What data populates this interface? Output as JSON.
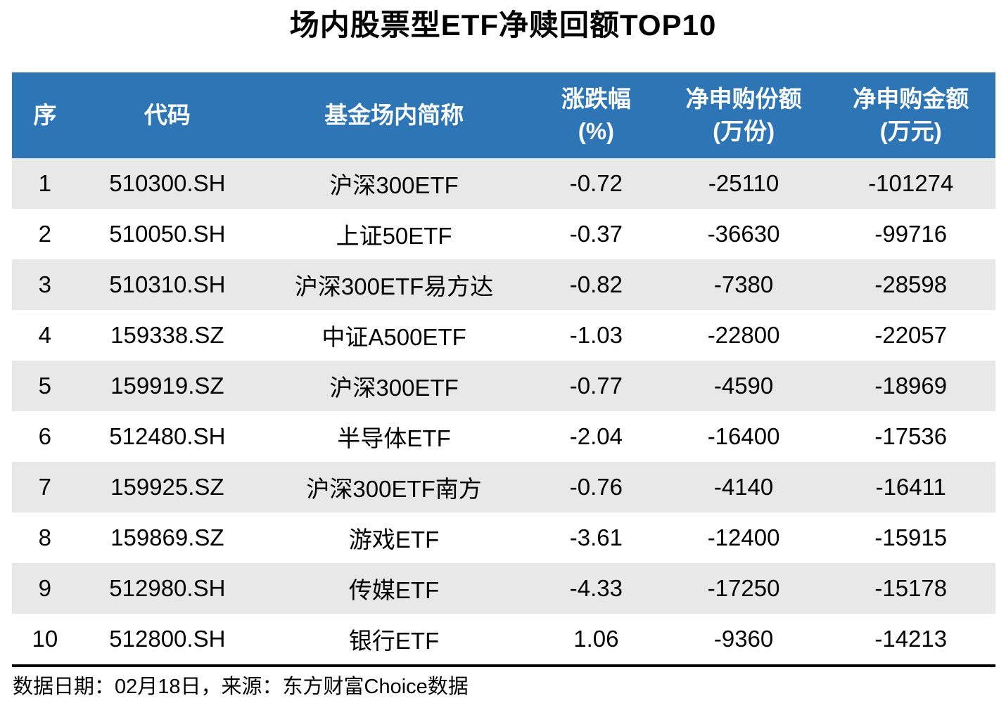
{
  "title": "场内股票型ETF净赎回额TOP10",
  "footer": {
    "text": "数据日期：02月18日，来源：东方财富Choice数据"
  },
  "colors": {
    "header_bg": "#2E75B6",
    "header_text": "#FFFFFF",
    "stripe_bg": "#E8E8E8",
    "body_text": "#000000",
    "divider": "#000000"
  },
  "chart_data": {
    "type": "table",
    "title": "场内股票型ETF净赎回额TOP10",
    "columns": [
      [
        "序",
        ""
      ],
      [
        "代码",
        ""
      ],
      [
        "基金场内简称",
        ""
      ],
      [
        "涨跌幅",
        "(%)"
      ],
      [
        "净申购份额",
        "(万份)"
      ],
      [
        "净申购金额",
        "(万元)"
      ]
    ],
    "rows": [
      [
        1,
        "510300.SH",
        "沪深300ETF",
        -0.72,
        -25110,
        -101274
      ],
      [
        2,
        "510050.SH",
        "上证50ETF",
        -0.37,
        -36630,
        -99716
      ],
      [
        3,
        "510310.SH",
        "沪深300ETF易方达",
        -0.82,
        -7380,
        -28598
      ],
      [
        4,
        "159338.SZ",
        "中证A500ETF",
        -1.03,
        -22800,
        -22057
      ],
      [
        5,
        "159919.SZ",
        "沪深300ETF",
        -0.77,
        -4590,
        -18969
      ],
      [
        6,
        "512480.SH",
        "半导体ETF",
        -2.04,
        -16400,
        -17536
      ],
      [
        7,
        "159925.SZ",
        "沪深300ETF南方",
        -0.76,
        -4140,
        -16411
      ],
      [
        8,
        "159869.SZ",
        "游戏ETF",
        -3.61,
        -12400,
        -15915
      ],
      [
        9,
        "512980.SH",
        "传媒ETF",
        -4.33,
        -17250,
        -15178
      ],
      [
        10,
        "512800.SH",
        "银行ETF",
        1.06,
        -9360,
        -14213
      ]
    ],
    "notes": {
      "date_label": "数据日期",
      "date_value": "02月18日",
      "source_label": "来源",
      "source_value": "东方财富Choice数据"
    },
    "layout": {
      "stripes": "odd-rows-gray",
      "header_lines": 2,
      "alignment": "center"
    }
  }
}
